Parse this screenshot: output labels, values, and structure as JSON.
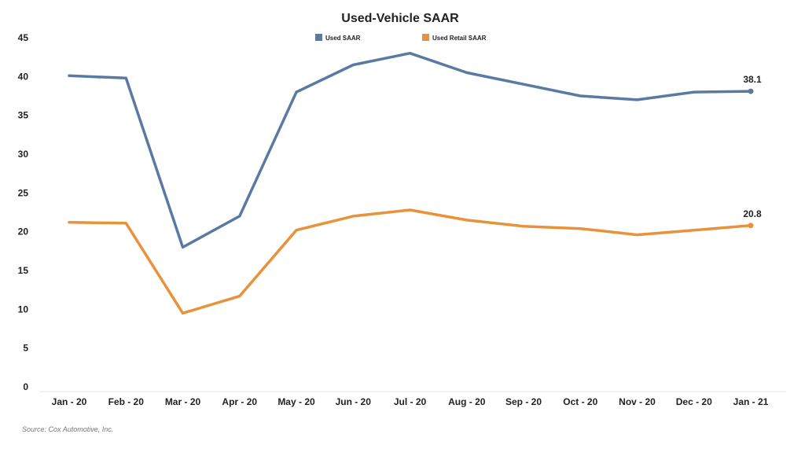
{
  "chart_data": {
    "type": "line",
    "title": "Used-Vehicle SAAR",
    "categories": [
      "Jan - 20",
      "Feb - 20",
      "Mar - 20",
      "Apr - 20",
      "May - 20",
      "Jun - 20",
      "Jul - 20",
      "Aug - 20",
      "Sep - 20",
      "Oct - 20",
      "Nov - 20",
      "Dec - 20",
      "Jan - 21"
    ],
    "series": [
      {
        "name": "Used SAAR",
        "color": "#5a7aa3",
        "values": [
          40.1,
          39.8,
          18.0,
          22.0,
          38.0,
          41.5,
          43.0,
          40.5,
          39.0,
          37.5,
          37.0,
          38.0,
          38.1
        ],
        "end_label": "38.1"
      },
      {
        "name": "Used Retail SAAR",
        "color": "#e8923c",
        "values": [
          21.2,
          21.1,
          9.5,
          11.7,
          20.2,
          22.0,
          22.8,
          21.5,
          20.7,
          20.4,
          19.6,
          20.2,
          20.8
        ],
        "end_label": "20.8"
      }
    ],
    "y_ticks": [
      "0",
      "5",
      "10",
      "15",
      "20",
      "25",
      "30",
      "35",
      "40",
      "45"
    ],
    "ylim": [
      0,
      45
    ],
    "legend_position": "top-center",
    "grid": false
  },
  "source": "Source: Cox Automotive, Inc."
}
